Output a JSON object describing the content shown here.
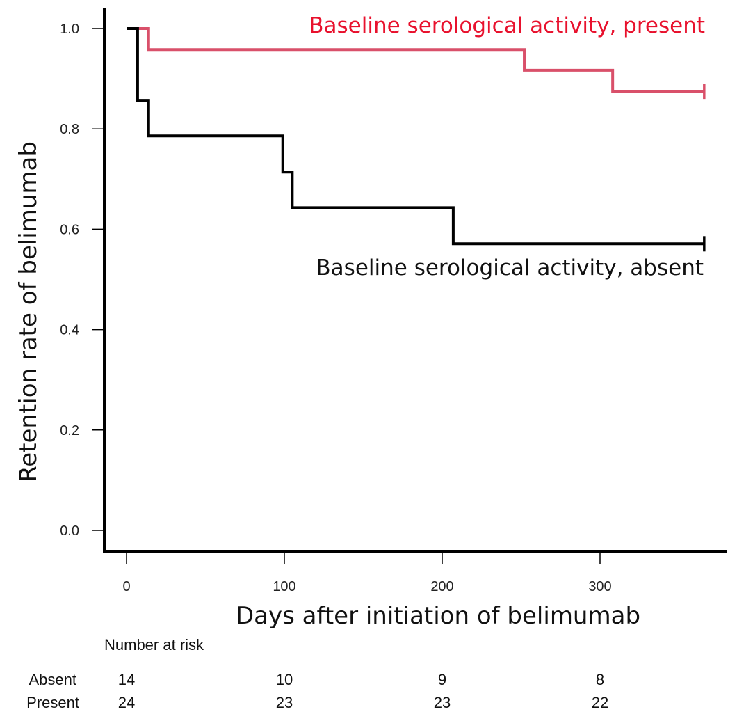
{
  "chart_data": {
    "type": "line",
    "subtype": "kaplan-meier step",
    "xlabel": "Days after initiation of belimumab",
    "ylabel": "Retention rate of belimumab",
    "xlim": [
      0,
      366
    ],
    "ylim": [
      0,
      1
    ],
    "x_ticks": [
      0,
      100,
      200,
      300
    ],
    "x_tick_labels": [
      "0",
      "100",
      "200",
      "300"
    ],
    "y_ticks": [
      0,
      0.2,
      0.4,
      0.6,
      0.8,
      1.0
    ],
    "y_tick_labels": [
      "0.0",
      "0.2",
      "0.4",
      "0.6",
      "0.8",
      "1.0"
    ],
    "series": [
      {
        "name": "Baseline serological activity, absent",
        "color": "#000000",
        "steps": [
          [
            0,
            1.0
          ],
          [
            7,
            0.857
          ],
          [
            14,
            0.786
          ],
          [
            99,
            0.714
          ],
          [
            105,
            0.643
          ],
          [
            207,
            0.571
          ],
          [
            366,
            0.571
          ]
        ],
        "censor_x": [
          366
        ]
      },
      {
        "name": "Baseline serological activity, present",
        "color": "#d9506a",
        "label_color": "#e8112d",
        "steps": [
          [
            0,
            1.0
          ],
          [
            14,
            0.958
          ],
          [
            252,
            0.917
          ],
          [
            308,
            0.875
          ],
          [
            366,
            0.875
          ]
        ],
        "censor_x": [
          366
        ]
      }
    ],
    "risk_table": {
      "title": "Number at risk",
      "times": [
        0,
        100,
        200,
        300
      ],
      "rows": [
        {
          "label": "Absent",
          "values": [
            "14",
            "10",
            "9",
            "8"
          ]
        },
        {
          "label": "Present",
          "values": [
            "24",
            "23",
            "23",
            "22"
          ]
        }
      ]
    }
  }
}
